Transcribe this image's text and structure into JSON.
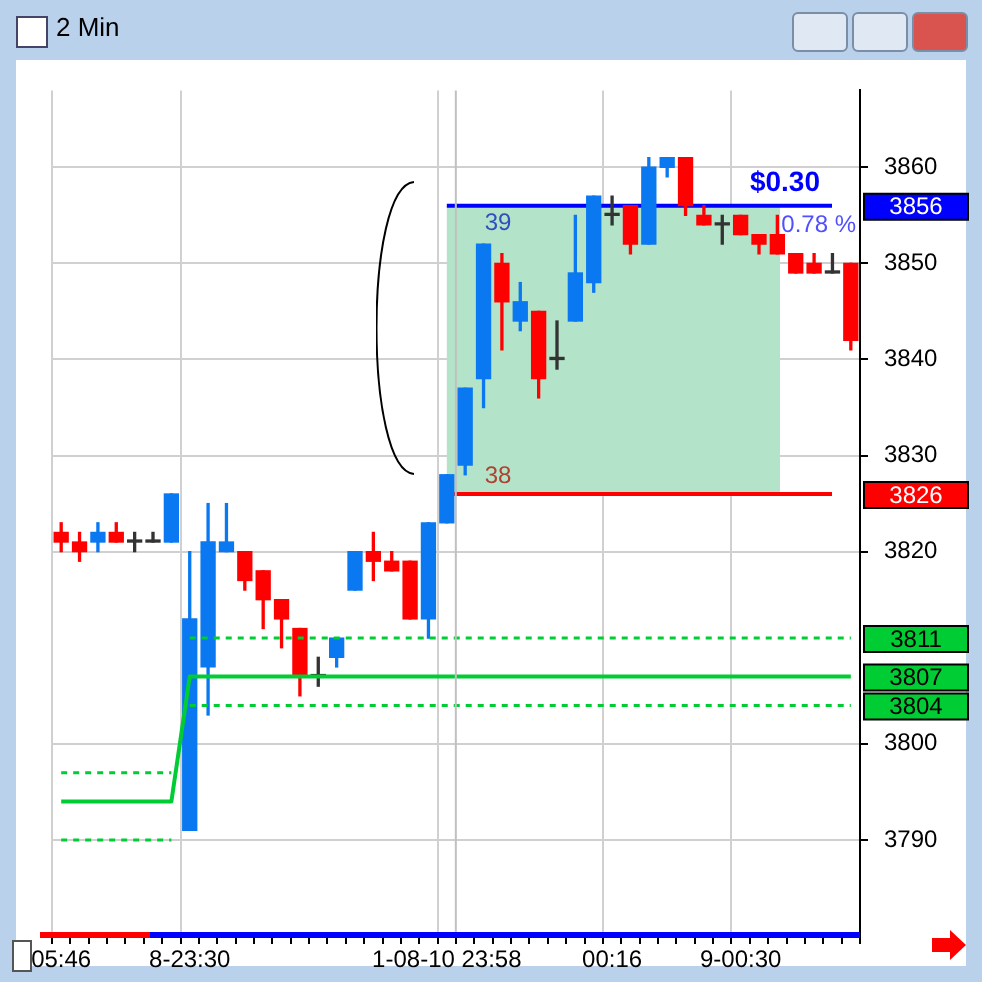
{
  "chart_data": {
    "type": "candlestick",
    "title": "2 Min",
    "categories": [
      "05:46",
      null,
      null,
      null,
      null,
      null,
      null,
      "8-23:30",
      null,
      null,
      null,
      null,
      null,
      null,
      null,
      null,
      null,
      null,
      null,
      null,
      null,
      "1-08-10 23:58",
      null,
      null,
      null,
      null,
      null,
      null,
      null,
      null,
      "00:16",
      null,
      null,
      null,
      null,
      null,
      null,
      "9-00:30",
      null,
      null,
      null,
      null,
      null,
      null
    ],
    "ohlc": [
      [
        3822,
        3823,
        3820,
        3821
      ],
      [
        3821,
        3822,
        3819,
        3820
      ],
      [
        3821,
        3823,
        3820,
        3822
      ],
      [
        3822,
        3823,
        3821,
        3821
      ],
      [
        3821,
        3822,
        3820,
        3821
      ],
      [
        3821,
        3822,
        3821,
        3821
      ],
      [
        3821,
        3826,
        3821,
        3826
      ],
      [
        3791,
        3820,
        3791,
        3813
      ],
      [
        3808,
        3825,
        3803,
        3821
      ],
      [
        3820,
        3825,
        3820,
        3821
      ],
      [
        3820,
        3820,
        3816,
        3817
      ],
      [
        3818,
        3818,
        3812,
        3815
      ],
      [
        3815,
        3815,
        3810,
        3813
      ],
      [
        3812,
        3812,
        3805,
        3807
      ],
      [
        3807,
        3809,
        3806,
        3807
      ],
      [
        3809,
        3811,
        3808,
        3811
      ],
      [
        3816,
        3820,
        3816,
        3820
      ],
      [
        3820,
        3822,
        3817,
        3819
      ],
      [
        3819,
        3820,
        3818,
        3818
      ],
      [
        3819,
        3819,
        3813,
        3813
      ],
      [
        3813,
        3823,
        3811,
        3823
      ],
      [
        3823,
        3828,
        3823,
        3828
      ],
      [
        3829,
        3837,
        3828,
        3837
      ],
      [
        3838,
        3852,
        3835,
        3852
      ],
      [
        3850,
        3851,
        3841,
        3846
      ],
      [
        3844,
        3848,
        3843,
        3846
      ],
      [
        3845,
        3845,
        3836,
        3838
      ],
      [
        3840,
        3844,
        3839,
        3840
      ],
      [
        3844,
        3855,
        3844,
        3849
      ],
      [
        3848,
        3857,
        3847,
        3857
      ],
      [
        3855,
        3857,
        3854,
        3855
      ],
      [
        3856,
        3856,
        3851,
        3852
      ],
      [
        3852,
        3861,
        3852,
        3860
      ],
      [
        3860,
        3861,
        3859,
        3861
      ],
      [
        3861,
        3861,
        3855,
        3856
      ],
      [
        3855,
        3856,
        3854,
        3854
      ],
      [
        3854,
        3855,
        3852,
        3854
      ],
      [
        3855,
        3855,
        3853,
        3853
      ],
      [
        3853,
        3853,
        3851,
        3852
      ],
      [
        3853,
        3855,
        3851,
        3851
      ],
      [
        3851,
        3851,
        3849,
        3849
      ],
      [
        3850,
        3851,
        3849,
        3849
      ],
      [
        3849,
        3851,
        3849,
        3849
      ],
      [
        3850,
        3850,
        3841,
        3842
      ]
    ],
    "colors": [
      "#ff0000",
      "#ff0000",
      "#0a78f0",
      "#ff0000",
      "#333333",
      "#333333",
      "#0a78f0",
      "#0a78f0",
      "#0a78f0",
      "#0a78f0",
      "#ff0000",
      "#ff0000",
      "#ff0000",
      "#ff0000",
      "#333333",
      "#0a78f0",
      "#0a78f0",
      "#ff0000",
      "#ff0000",
      "#ff0000",
      "#0a78f0",
      "#0a78f0",
      "#0a78f0",
      "#0a78f0",
      "#ff0000",
      "#0a78f0",
      "#ff0000",
      "#333333",
      "#0a78f0",
      "#0a78f0",
      "#333333",
      "#ff0000",
      "#0a78f0",
      "#0a78f0",
      "#ff0000",
      "#ff0000",
      "#333333",
      "#ff0000",
      "#ff0000",
      "#ff0000",
      "#ff0000",
      "#ff0000",
      "#333333",
      "#ff0000"
    ],
    "series": [
      {
        "type": "line",
        "color": "#00cc33",
        "line_style": "solid",
        "values": [
          3794,
          3794,
          3794,
          3794,
          3794,
          3794,
          3794,
          3807,
          3807,
          3807,
          3807,
          3807,
          3807,
          3807,
          3807,
          3807,
          3807,
          3807,
          3807,
          3807,
          3807,
          3807,
          3807,
          3807,
          3807,
          3807,
          3807,
          3807,
          3807,
          3807,
          3807,
          3807,
          3807,
          3807,
          3807,
          3807,
          3807,
          3807,
          3807,
          3807,
          3807,
          3807,
          3807,
          3807
        ],
        "value_labels": [
          null,
          null,
          null,
          null,
          null,
          null,
          null,
          null,
          null,
          null,
          null,
          null,
          null,
          null,
          null,
          null,
          null,
          null,
          null,
          null,
          null,
          null,
          null,
          null,
          null,
          null,
          null,
          null,
          null,
          null,
          null,
          null,
          null,
          null,
          null,
          null,
          null,
          null,
          null,
          null,
          null,
          null,
          null,
          "3807"
        ]
      },
      {
        "type": "line",
        "color": "#00cc33",
        "line_style": "dashed",
        "values": [
          3797,
          3797,
          3797,
          3797,
          3797,
          3797,
          3797,
          null,
          null,
          null,
          null,
          null,
          null,
          null,
          null,
          null,
          null,
          null,
          null,
          null,
          null,
          null,
          null,
          null,
          null,
          null,
          null,
          null,
          null,
          null,
          null,
          null,
          null,
          null,
          null,
          null,
          null,
          null,
          null,
          null,
          null,
          null,
          null,
          null
        ]
      },
      {
        "type": "line",
        "color": "#00cc33",
        "line_style": "dashed",
        "values": [
          3790,
          3790,
          3790,
          3790,
          3790,
          3790,
          3790,
          null,
          null,
          null,
          null,
          null,
          null,
          null,
          null,
          null,
          null,
          null,
          null,
          null,
          null,
          null,
          null,
          null,
          null,
          null,
          null,
          null,
          null,
          null,
          null,
          null,
          null,
          null,
          null,
          null,
          null,
          null,
          null,
          null,
          null,
          null,
          null,
          null
        ]
      },
      {
        "type": "line",
        "color": "#00cc33",
        "line_style": "dashed",
        "values": [
          null,
          null,
          null,
          null,
          null,
          null,
          null,
          3811,
          3811,
          3811,
          3811,
          3811,
          3811,
          3811,
          3811,
          3811,
          3811,
          3811,
          3811,
          3811,
          3811,
          3811,
          3811,
          3811,
          3811,
          3811,
          3811,
          3811,
          3811,
          3811,
          3811,
          3811,
          3811,
          3811,
          3811,
          3811,
          3811,
          3811,
          3811,
          3811,
          3811,
          3811,
          3811,
          3811
        ],
        "value_labels": [
          null,
          null,
          null,
          null,
          null,
          null,
          null,
          null,
          null,
          null,
          null,
          null,
          null,
          null,
          null,
          null,
          null,
          null,
          null,
          null,
          null,
          null,
          null,
          null,
          null,
          null,
          null,
          null,
          null,
          null,
          null,
          null,
          null,
          null,
          null,
          null,
          null,
          null,
          null,
          null,
          null,
          null,
          null,
          "3811"
        ]
      },
      {
        "type": "line",
        "color": "#00cc33",
        "line_style": "dashed",
        "values": [
          null,
          null,
          null,
          null,
          null,
          null,
          null,
          3804,
          3804,
          3804,
          3804,
          3804,
          3804,
          3804,
          3804,
          3804,
          3804,
          3804,
          3804,
          3804,
          3804,
          3804,
          3804,
          3804,
          3804,
          3804,
          3804,
          3804,
          3804,
          3804,
          3804,
          3804,
          3804,
          3804,
          3804,
          3804,
          3804,
          3804,
          3804,
          3804,
          3804,
          3804,
          3804,
          3804
        ],
        "value_labels": [
          null,
          null,
          null,
          null,
          null,
          null,
          null,
          null,
          null,
          null,
          null,
          null,
          null,
          null,
          null,
          null,
          null,
          null,
          null,
          null,
          null,
          null,
          null,
          null,
          null,
          null,
          null,
          null,
          null,
          null,
          null,
          null,
          null,
          null,
          null,
          null,
          null,
          null,
          null,
          null,
          null,
          null,
          null,
          "3804"
        ]
      }
    ],
    "ylim": [
      3780,
      3868
    ],
    "yticks": [
      3790,
      3800,
      3820,
      3830,
      3840,
      3850,
      3860
    ],
    "grid": true,
    "legend": false,
    "ref_lines": [
      {
        "axis": "y",
        "value": 3856,
        "label": "3856",
        "color": "#0000ff"
      },
      {
        "axis": "y",
        "value": 3826,
        "label": "3826",
        "color": "#ff0000"
      },
      {
        "axis": "x",
        "value": "1-08-10 23:58",
        "color": "#c0c0c0"
      }
    ],
    "bands": [
      {
        "axis": "y",
        "from": 3826,
        "to": 3856,
        "color": "#b3e3c8"
      }
    ],
    "annotations": [
      "$0.30",
      "0.78 %",
      "39",
      "38"
    ]
  }
}
